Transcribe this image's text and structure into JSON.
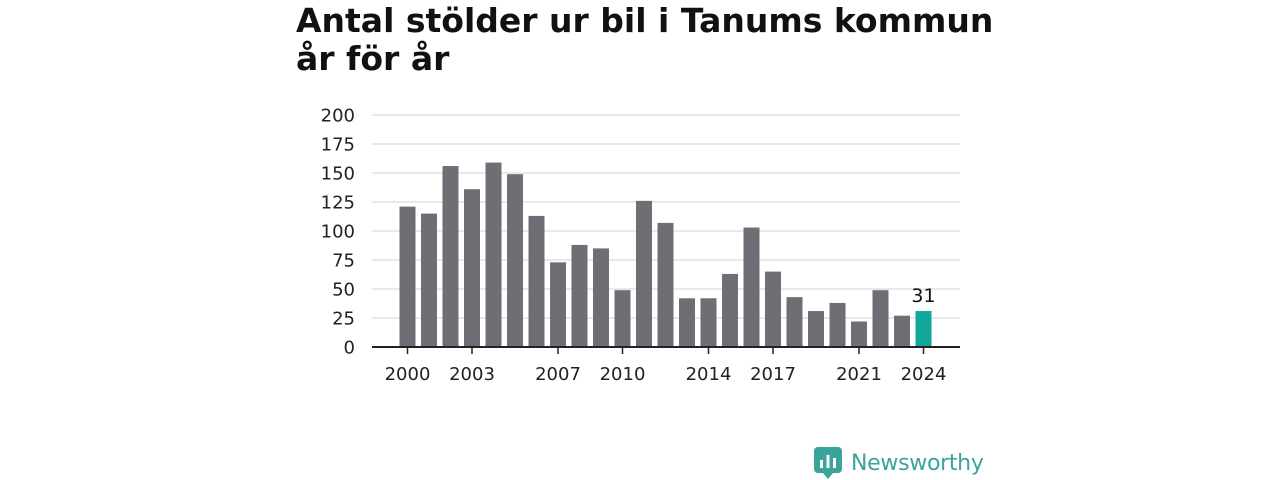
{
  "title_line1": "Antal stölder ur bil i Tanums kommun",
  "title_line2": "år för år",
  "brand": "Newsworthy",
  "colors": {
    "bar": "#6f6e75",
    "highlight": "#11a89b",
    "grid": "#dcdcdc",
    "axis": "#222222",
    "brand": "#3aa39a"
  },
  "chart_data": {
    "type": "bar",
    "title": "Antal stölder ur bil i Tanums kommun år för år",
    "categories": [
      "2000",
      "2001",
      "2002",
      "2003",
      "2004",
      "2005",
      "2006",
      "2007",
      "2008",
      "2009",
      "2010",
      "2011",
      "2012",
      "2013",
      "2014",
      "2015",
      "2016",
      "2017",
      "2018",
      "2019",
      "2020",
      "2021",
      "2022",
      "2023",
      "2024"
    ],
    "values": [
      121,
      115,
      156,
      136,
      159,
      149,
      113,
      73,
      88,
      85,
      49,
      126,
      107,
      42,
      42,
      63,
      103,
      65,
      43,
      31,
      38,
      22,
      49,
      27,
      31
    ],
    "highlight_index": 24,
    "highlight_label": "31",
    "x_tick_labels": [
      "2000",
      "2003",
      "2007",
      "2010",
      "2014",
      "2017",
      "2021",
      "2024"
    ],
    "y_ticks": [
      0,
      25,
      50,
      75,
      100,
      125,
      150,
      175,
      200
    ],
    "ylim": [
      0,
      200
    ],
    "grid": true,
    "xlabel": "",
    "ylabel": ""
  }
}
